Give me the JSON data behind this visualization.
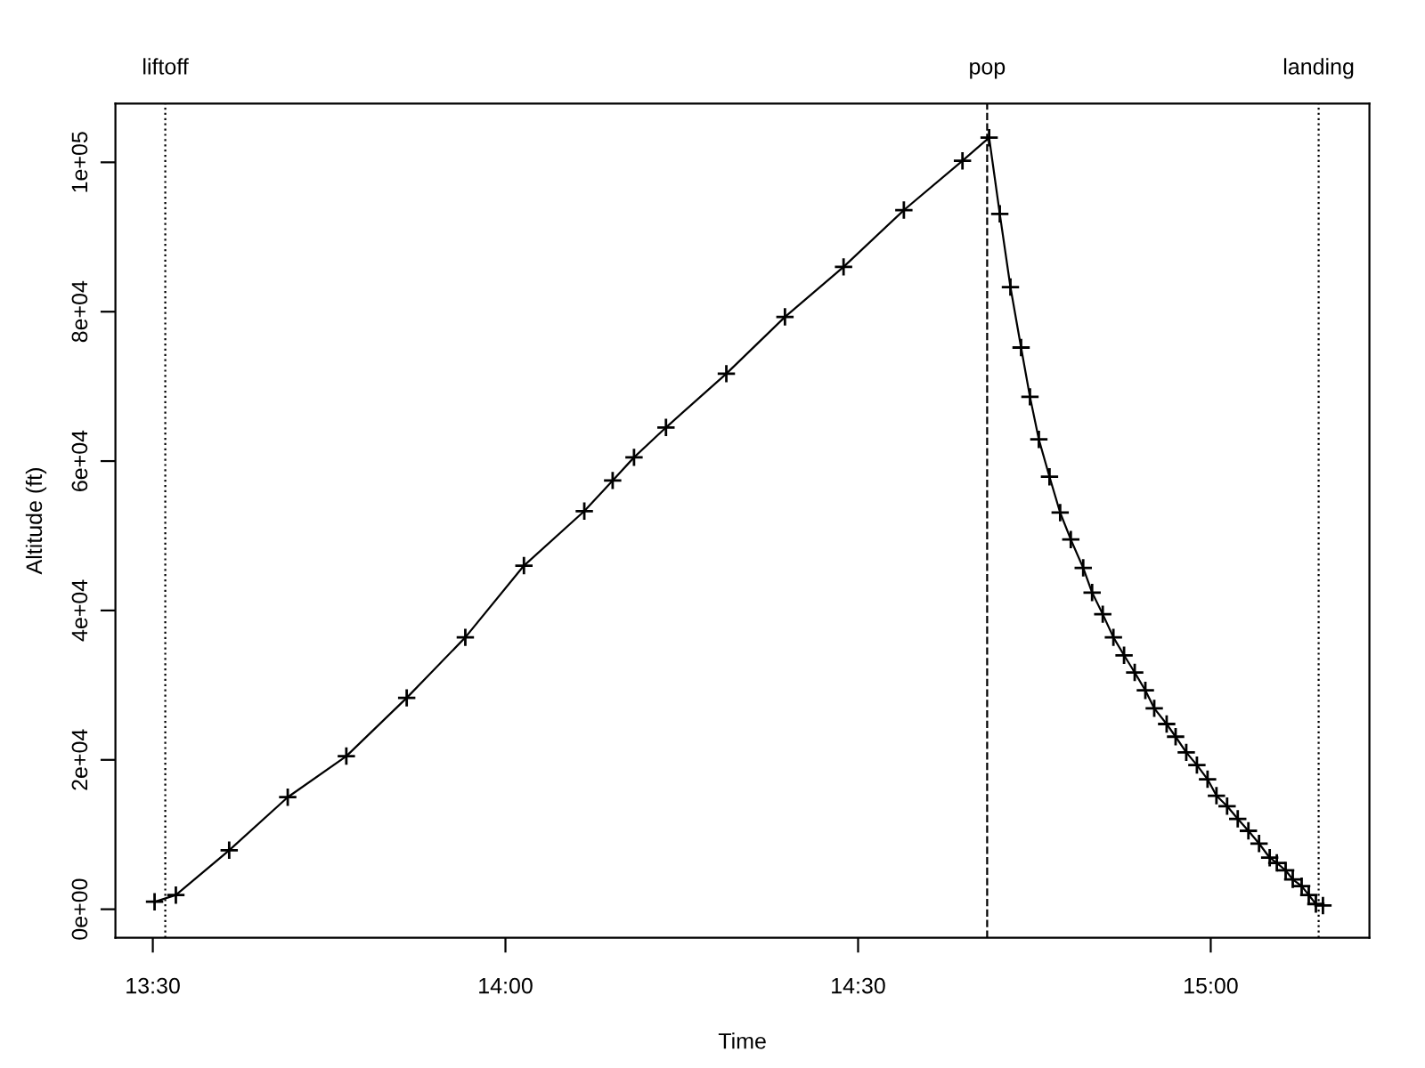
{
  "chart_data": {
    "type": "line",
    "xlabel": "Time",
    "ylabel": "Altitude (ft)",
    "x": [
      13.5025,
      13.5327,
      13.6083,
      13.6913,
      13.7744,
      13.86,
      13.9431,
      14.0262,
      14.1118,
      14.152,
      14.1823,
      14.2276,
      14.3132,
      14.3963,
      14.4794,
      14.5649,
      14.648,
      14.6858,
      14.7009,
      14.716,
      14.7311,
      14.7437,
      14.7563,
      14.7714,
      14.7865,
      14.8016,
      14.8192,
      14.8318,
      14.8469,
      14.862,
      14.8771,
      14.8922,
      14.9073,
      14.9199,
      14.9375,
      14.9502,
      14.9653,
      14.9804,
      14.9955,
      15.0081,
      15.0232,
      15.0383,
      15.0534,
      15.0685,
      15.0836,
      15.0937,
      15.1062,
      15.1163,
      15.1289,
      15.139,
      15.1491,
      15.1591
    ],
    "series": [
      {
        "color": "#000000",
        "values": [
          1000,
          1900,
          7900,
          15000,
          20500,
          28300,
          36400,
          46000,
          53300,
          57400,
          60500,
          64500,
          71700,
          79300,
          86000,
          93600,
          100200,
          103300,
          93100,
          83300,
          75200,
          68600,
          62900,
          57900,
          53100,
          49500,
          45700,
          42400,
          39500,
          36400,
          34000,
          31700,
          29300,
          26900,
          24800,
          23100,
          21000,
          19300,
          17400,
          15200,
          13800,
          12100,
          10500,
          8800,
          6900,
          6200,
          5200,
          4000,
          3100,
          1900,
          700,
          500
        ]
      }
    ],
    "marker": "cross",
    "line_style": "solid",
    "grid": false,
    "legend": false,
    "xlim": [
      13.447,
      15.225
    ],
    "ylim": [
      -3810,
      107860
    ],
    "xticks": [
      {
        "value": 13.5,
        "label": "13:30"
      },
      {
        "value": 14.0,
        "label": "14:00"
      },
      {
        "value": 14.5,
        "label": "14:30"
      },
      {
        "value": 15.0,
        "label": "15:00"
      }
    ],
    "yticks": [
      {
        "value": 0,
        "label": "0e+00"
      },
      {
        "value": 20000,
        "label": "2e+04"
      },
      {
        "value": 40000,
        "label": "4e+04"
      },
      {
        "value": 60000,
        "label": "6e+04"
      },
      {
        "value": 80000,
        "label": "8e+04"
      },
      {
        "value": 100000,
        "label": "1e+05"
      }
    ],
    "ref_lines": [
      {
        "axis": "x",
        "value": 13.5177,
        "label": "liftoff",
        "color": "#000000",
        "line_style": "dotted"
      },
      {
        "axis": "x",
        "value": 14.683,
        "label": "pop",
        "color": "#000000",
        "line_style": "dashed"
      },
      {
        "axis": "x",
        "value": 15.153,
        "label": "landing",
        "color": "#000000",
        "line_style": "dotted"
      }
    ]
  }
}
